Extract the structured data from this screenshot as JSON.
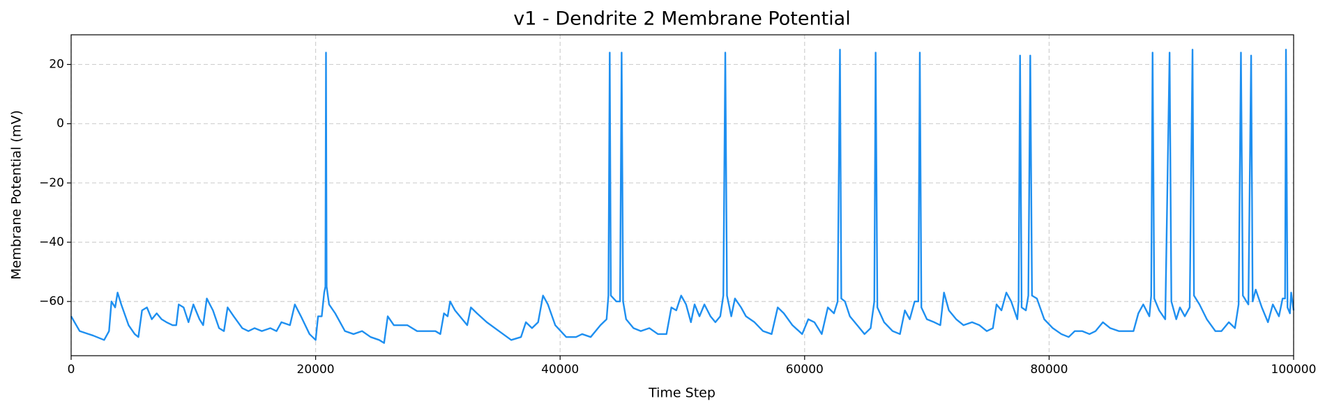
{
  "chart_data": {
    "type": "line",
    "title": "v1 - Dendrite 2 Membrane Potential",
    "xlabel": "Time Step",
    "ylabel": "Membrane Potential (mV)",
    "color": "#1e8ff0",
    "grid": true,
    "xlim": [
      0,
      100000
    ],
    "ylim": [
      -78.3,
      30
    ],
    "xticks": [
      0,
      20000,
      40000,
      60000,
      80000,
      100000
    ],
    "yticks": [
      {
        "value": -60,
        "label": "−60"
      },
      {
        "value": -40,
        "label": "−40"
      },
      {
        "value": -20,
        "label": "−20"
      },
      0,
      20
    ],
    "x": [
      0,
      700,
      1800,
      2700,
      3100,
      3300,
      3600,
      3800,
      4100,
      4700,
      5200,
      5500,
      5800,
      6200,
      6600,
      7000,
      7400,
      7800,
      8300,
      8600,
      8800,
      9200,
      9600,
      10000,
      10500,
      10800,
      11100,
      11600,
      12100,
      12500,
      12800,
      13300,
      14000,
      14500,
      15000,
      15600,
      16300,
      16800,
      17200,
      17900,
      18300,
      18800,
      19500,
      20000,
      20200,
      20500,
      20700,
      20800,
      20848,
      20900,
      21100,
      21600,
      22400,
      23100,
      23800,
      24500,
      25200,
      25600,
      25900,
      26400,
      26900,
      27500,
      28300,
      29000,
      29800,
      30200,
      30500,
      30800,
      31000,
      31400,
      32000,
      32400,
      32700,
      33200,
      34000,
      35000,
      36000,
      36800,
      37200,
      37700,
      38200,
      38600,
      39000,
      39600,
      40500,
      41300,
      41800,
      42500,
      43300,
      43800,
      43950,
      44058,
      44150,
      44600,
      44900,
      45031,
      45150,
      45400,
      46000,
      46600,
      47300,
      48000,
      48700,
      49100,
      49500,
      49900,
      50300,
      50700,
      51000,
      51400,
      51800,
      52300,
      52700,
      53100,
      53350,
      53510,
      53650,
      54000,
      54300,
      54800,
      55200,
      55900,
      56600,
      57300,
      57800,
      58300,
      59000,
      59800,
      60300,
      60800,
      61400,
      61900,
      62400,
      62700,
      62891,
      63000,
      63300,
      63700,
      64300,
      64900,
      65400,
      65700,
      65809,
      65950,
      66500,
      67200,
      67800,
      68200,
      68600,
      69000,
      69300,
      69423,
      69550,
      70000,
      70600,
      71100,
      71400,
      71800,
      72400,
      73000,
      73700,
      74300,
      74900,
      75400,
      75700,
      76100,
      76500,
      76900,
      77400,
      77500,
      77623,
      77750,
      78100,
      78300,
      78457,
      78600,
      79000,
      79600,
      80300,
      81000,
      81600,
      82100,
      82700,
      83300,
      83800,
      84400,
      85000,
      85700,
      86400,
      86900,
      87300,
      87700,
      88200,
      88350,
      88464,
      88600,
      89000,
      89500,
      89854,
      90000,
      90400,
      90700,
      91100,
      91500,
      91730,
      91850,
      92300,
      92900,
      93600,
      94100,
      94700,
      95200,
      95500,
      95691,
      95850,
      96300,
      96525,
      96650,
      96900,
      97400,
      97900,
      98300,
      98800,
      99100,
      99300,
      99375,
      99500,
      99700,
      99800,
      100000
    ],
    "values": [
      -65,
      -70,
      -71.5,
      -73,
      -70,
      -60,
      -62,
      -57,
      -61,
      -68,
      -71,
      -72,
      -63,
      -62,
      -66,
      -64,
      -66,
      -67,
      -68,
      -68,
      -61,
      -62,
      -67,
      -61,
      -66,
      -68,
      -59,
      -63,
      -69,
      -70,
      -62,
      -65,
      -69,
      -70,
      -69,
      -70,
      -69,
      -70,
      -67,
      -68,
      -61,
      -65,
      -71,
      -73,
      -65,
      -65,
      -57,
      -55,
      24,
      -55,
      -61,
      -64,
      -70,
      -71,
      -70,
      -72,
      -73,
      -74,
      -65,
      -68,
      -68,
      -68,
      -70,
      -70,
      -70,
      -71,
      -64,
      -65,
      -60,
      -63,
      -66,
      -68,
      -62,
      -64,
      -67,
      -70,
      -73,
      -72,
      -67,
      -69,
      -67,
      -58,
      -61,
      -68,
      -72,
      -72,
      -71,
      -72,
      -68,
      -66,
      -58,
      24,
      -58,
      -60,
      -60,
      24,
      -60,
      -66,
      -69,
      -70,
      -69,
      -71,
      -71,
      -62,
      -63,
      -58,
      -61,
      -67,
      -61,
      -65,
      -61,
      -65,
      -67,
      -65,
      -58,
      24,
      -58,
      -65,
      -59,
      -62,
      -65,
      -67,
      -70,
      -71,
      -62,
      -64,
      -68,
      -71,
      -66,
      -67,
      -71,
      -62,
      -64,
      -60,
      25,
      -59,
      -60,
      -65,
      -68,
      -71,
      -69,
      -60,
      24,
      -62,
      -67,
      -70,
      -71,
      -63,
      -66,
      -60,
      -60,
      24,
      -62,
      -66,
      -67,
      -68,
      -57,
      -63,
      -66,
      -68,
      -67,
      -68,
      -70,
      -69,
      -61,
      -63,
      -57,
      -60,
      -66,
      -60,
      23,
      -62,
      -63,
      -58,
      23,
      -58,
      -59,
      -66,
      -69,
      -71,
      -72,
      -70,
      -70,
      -71,
      -70,
      -67,
      -69,
      -70,
      -70,
      -70,
      -64,
      -61,
      -65,
      -58,
      24,
      -59,
      -63,
      -66,
      24,
      -60,
      -66,
      -62,
      -65,
      -62,
      25,
      -58,
      -61,
      -66,
      -70,
      -70,
      -67,
      -69,
      -61,
      24,
      -58,
      -61,
      23,
      -60,
      -56,
      -62,
      -67,
      -61,
      -65,
      -59,
      -59,
      25,
      -62,
      -64,
      -57,
      -63
    ]
  }
}
